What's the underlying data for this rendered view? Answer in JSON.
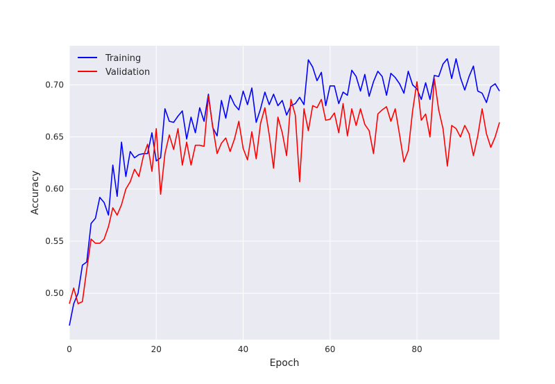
{
  "chart_data": {
    "type": "line",
    "title": "",
    "xlabel": "Epoch",
    "ylabel": "Accuracy",
    "xlim": [
      0,
      99
    ],
    "ylim": [
      0.4555,
      0.7375
    ],
    "xticks": [
      0,
      20,
      40,
      60,
      80
    ],
    "yticks": [
      0.5,
      0.55,
      0.6,
      0.65,
      0.7
    ],
    "grid": true,
    "legend_position": "upper-left",
    "colors": {
      "background": "#eaeaf2",
      "grid": "#ffffff"
    },
    "series": [
      {
        "name": "Training",
        "color": "#0000ff",
        "values": [
          0.469,
          0.49,
          0.5,
          0.527,
          0.53,
          0.567,
          0.572,
          0.592,
          0.587,
          0.575,
          0.623,
          0.593,
          0.645,
          0.612,
          0.636,
          0.63,
          0.633,
          0.634,
          0.634,
          0.654,
          0.627,
          0.63,
          0.677,
          0.665,
          0.664,
          0.67,
          0.675,
          0.648,
          0.669,
          0.654,
          0.678,
          0.665,
          0.691,
          0.659,
          0.651,
          0.685,
          0.668,
          0.69,
          0.681,
          0.676,
          0.694,
          0.681,
          0.697,
          0.664,
          0.677,
          0.693,
          0.681,
          0.691,
          0.68,
          0.685,
          0.671,
          0.68,
          0.682,
          0.688,
          0.681,
          0.724,
          0.717,
          0.704,
          0.712,
          0.68,
          0.699,
          0.699,
          0.682,
          0.693,
          0.69,
          0.714,
          0.708,
          0.694,
          0.71,
          0.689,
          0.703,
          0.713,
          0.708,
          0.69,
          0.711,
          0.707,
          0.701,
          0.692,
          0.713,
          0.7,
          0.696,
          0.686,
          0.702,
          0.686,
          0.709,
          0.708,
          0.72,
          0.725,
          0.706,
          0.725,
          0.707,
          0.695,
          0.708,
          0.718,
          0.694,
          0.692,
          0.683,
          0.698,
          0.701,
          0.694
        ]
      },
      {
        "name": "Validation",
        "color": "#ff0000",
        "values": [
          0.49,
          0.505,
          0.49,
          0.492,
          0.523,
          0.552,
          0.548,
          0.548,
          0.552,
          0.564,
          0.582,
          0.575,
          0.585,
          0.6,
          0.607,
          0.619,
          0.612,
          0.631,
          0.643,
          0.617,
          0.658,
          0.595,
          0.634,
          0.652,
          0.638,
          0.658,
          0.623,
          0.645,
          0.623,
          0.642,
          0.642,
          0.641,
          0.689,
          0.66,
          0.634,
          0.644,
          0.649,
          0.636,
          0.648,
          0.665,
          0.639,
          0.628,
          0.655,
          0.629,
          0.663,
          0.678,
          0.652,
          0.62,
          0.669,
          0.654,
          0.632,
          0.686,
          0.671,
          0.607,
          0.677,
          0.656,
          0.68,
          0.678,
          0.686,
          0.666,
          0.667,
          0.673,
          0.654,
          0.682,
          0.651,
          0.677,
          0.661,
          0.677,
          0.662,
          0.656,
          0.634,
          0.672,
          0.676,
          0.679,
          0.665,
          0.677,
          0.652,
          0.626,
          0.637,
          0.675,
          0.703,
          0.666,
          0.672,
          0.65,
          0.706,
          0.676,
          0.658,
          0.622,
          0.661,
          0.658,
          0.65,
          0.661,
          0.653,
          0.632,
          0.651,
          0.677,
          0.653,
          0.64,
          0.65,
          0.664
        ]
      }
    ]
  }
}
